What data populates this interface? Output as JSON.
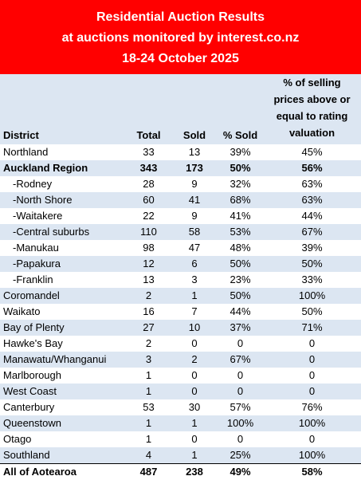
{
  "header": {
    "line1": "Residential Auction Results",
    "line2": "at auctions monitored by interest.co.nz",
    "line3": "18-24 October 2025"
  },
  "columns": {
    "district": "District",
    "total": "Total",
    "sold": "Sold",
    "pct_sold": "% Sold",
    "valuation_line1": "% of selling",
    "valuation_line2": "prices above or",
    "valuation_line3": "equal to rating",
    "valuation_line4": "valuation"
  },
  "rows": [
    {
      "district": "Northland",
      "total": "33",
      "sold": "13",
      "pct_sold": "39%",
      "valuation": "45%"
    },
    {
      "district": "Auckland Region",
      "total": "343",
      "sold": "173",
      "pct_sold": "50%",
      "valuation": "56%"
    },
    {
      "district": "-Rodney",
      "total": "28",
      "sold": "9",
      "pct_sold": "32%",
      "valuation": "63%"
    },
    {
      "district": "-North Shore",
      "total": "60",
      "sold": "41",
      "pct_sold": "68%",
      "valuation": "63%"
    },
    {
      "district": "-Waitakere",
      "total": "22",
      "sold": "9",
      "pct_sold": "41%",
      "valuation": "44%"
    },
    {
      "district": "-Central suburbs",
      "total": "110",
      "sold": "58",
      "pct_sold": "53%",
      "valuation": "67%"
    },
    {
      "district": "-Manukau",
      "total": "98",
      "sold": "47",
      "pct_sold": "48%",
      "valuation": "39%"
    },
    {
      "district": "-Papakura",
      "total": "12",
      "sold": "6",
      "pct_sold": "50%",
      "valuation": "50%"
    },
    {
      "district": "-Franklin",
      "total": "13",
      "sold": "3",
      "pct_sold": "23%",
      "valuation": "33%"
    },
    {
      "district": "Coromandel",
      "total": "2",
      "sold": "1",
      "pct_sold": "50%",
      "valuation": "100%"
    },
    {
      "district": "Waikato",
      "total": "16",
      "sold": "7",
      "pct_sold": "44%",
      "valuation": "50%"
    },
    {
      "district": "Bay of Plenty",
      "total": "27",
      "sold": "10",
      "pct_sold": "37%",
      "valuation": "71%"
    },
    {
      "district": "Hawke's Bay",
      "total": "2",
      "sold": "0",
      "pct_sold": "0",
      "valuation": "0"
    },
    {
      "district": "Manawatu/Whanganui",
      "total": "3",
      "sold": "2",
      "pct_sold": "67%",
      "valuation": "0"
    },
    {
      "district": "Marlborough",
      "total": "1",
      "sold": "0",
      "pct_sold": "0",
      "valuation": "0"
    },
    {
      "district": "West Coast",
      "total": "1",
      "sold": "0",
      "pct_sold": "0",
      "valuation": "0"
    },
    {
      "district": "Canterbury",
      "total": "53",
      "sold": "30",
      "pct_sold": "57%",
      "valuation": "76%"
    },
    {
      "district": "Queenstown",
      "total": "1",
      "sold": "1",
      "pct_sold": "100%",
      "valuation": "100%"
    },
    {
      "district": "Otago",
      "total": "1",
      "sold": "0",
      "pct_sold": "0",
      "valuation": "0"
    },
    {
      "district": "Southland",
      "total": "4",
      "sold": "1",
      "pct_sold": "25%",
      "valuation": "100%"
    },
    {
      "district": "All of Aotearoa",
      "total": "487",
      "sold": "238",
      "pct_sold": "49%",
      "valuation": "58%"
    }
  ],
  "colors": {
    "banner": "#ff0000",
    "banner_text": "#ffffff",
    "band": "#dce6f2"
  }
}
